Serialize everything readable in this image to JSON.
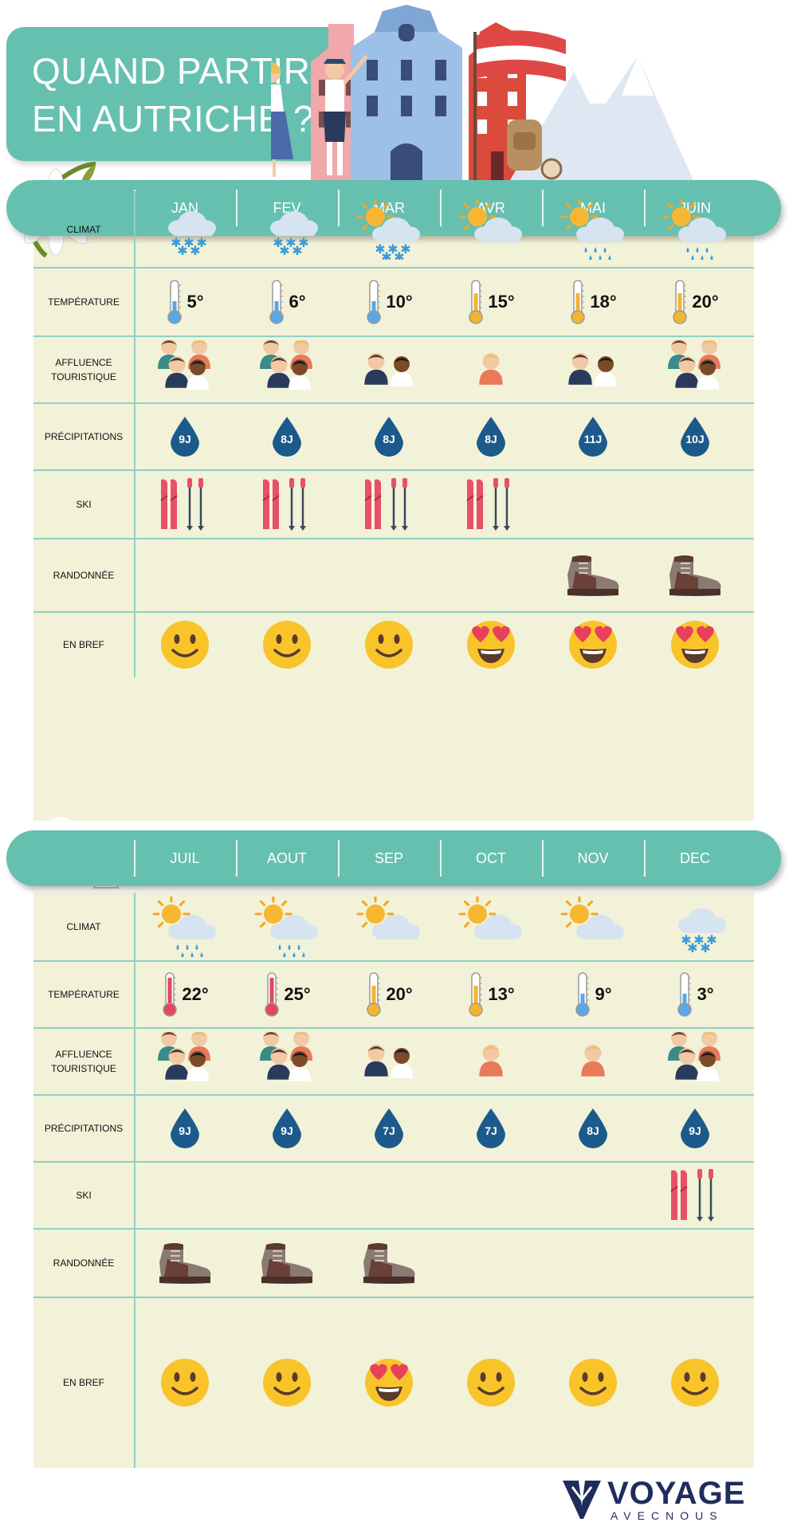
{
  "title": {
    "line1": "QUAND PARTIR",
    "line2": "EN AUTRICHE ?"
  },
  "row_labels": {
    "climat": "CLIMAT",
    "temperature": "TEMPÉRATURE",
    "affluence_line1": "AFFLUENCE",
    "affluence_line2": "TOURISTIQUE",
    "precipitations": "PRÉCIPITATIONS",
    "ski": "SKI",
    "randonnee": "RANDONNÉE",
    "en_bref": "EN BREF"
  },
  "tables": [
    {
      "months": [
        {
          "name": "JAN",
          "climate": "cloud-snow-icon",
          "temperature": "5°",
          "thermo": "cold",
          "crowd": 4,
          "precip": "9J",
          "ski": true,
          "hike": false,
          "mood": "smile"
        },
        {
          "name": "FEV",
          "climate": "cloud-snow-icon",
          "temperature": "6°",
          "thermo": "cold",
          "crowd": 4,
          "precip": "8J",
          "ski": true,
          "hike": false,
          "mood": "smile"
        },
        {
          "name": "MAR",
          "climate": "sun-cloud-snow-icon",
          "temperature": "10°",
          "thermo": "cold",
          "crowd": 2,
          "precip": "8J",
          "ski": true,
          "hike": false,
          "mood": "smile"
        },
        {
          "name": "AVR",
          "climate": "sun-cloud-icon",
          "temperature": "15°",
          "thermo": "mild",
          "crowd": 1,
          "precip": "8J",
          "ski": true,
          "hike": false,
          "mood": "love"
        },
        {
          "name": "MAI",
          "climate": "sun-cloud-rain-icon",
          "temperature": "18°",
          "thermo": "mild",
          "crowd": 2,
          "precip": "11J",
          "ski": false,
          "hike": true,
          "mood": "love"
        },
        {
          "name": "JUIN",
          "climate": "sun-cloud-rain-icon",
          "temperature": "20°",
          "thermo": "mild",
          "crowd": 4,
          "precip": "10J",
          "ski": false,
          "hike": true,
          "mood": "love"
        }
      ]
    },
    {
      "months": [
        {
          "name": "JUIL",
          "climate": "sun-cloud-rain-icon",
          "temperature": "22°",
          "thermo": "hot",
          "crowd": 4,
          "precip": "9J",
          "ski": false,
          "hike": true,
          "mood": "smile"
        },
        {
          "name": "AOUT",
          "climate": "sun-cloud-rain-icon",
          "temperature": "25°",
          "thermo": "hot",
          "crowd": 4,
          "precip": "9J",
          "ski": false,
          "hike": true,
          "mood": "smile"
        },
        {
          "name": "SEP",
          "climate": "sun-cloud-icon",
          "temperature": "20°",
          "thermo": "mild",
          "crowd": 2,
          "precip": "7J",
          "ski": false,
          "hike": true,
          "mood": "love"
        },
        {
          "name": "OCT",
          "climate": "sun-cloud-icon",
          "temperature": "13°",
          "thermo": "mild",
          "crowd": 1,
          "precip": "7J",
          "ski": false,
          "hike": false,
          "mood": "smile"
        },
        {
          "name": "NOV",
          "climate": "sun-cloud-icon",
          "temperature": "9°",
          "thermo": "cold",
          "crowd": 1,
          "precip": "8J",
          "ski": false,
          "hike": false,
          "mood": "smile"
        },
        {
          "name": "DEC",
          "climate": "cloud-snow-icon",
          "temperature": "3°",
          "thermo": "cold",
          "crowd": 4,
          "precip": "9J",
          "ski": true,
          "hike": false,
          "mood": "smile"
        }
      ]
    }
  ],
  "logo": {
    "main": "VOYAGE",
    "sub": "AVECNOUS"
  },
  "colors": {
    "teal": "#66c0b0",
    "table_bg": "#f2f2d8",
    "drop": "#1c5a8c",
    "emoji": "#f8c42a",
    "ski_red": "#e8506a"
  }
}
